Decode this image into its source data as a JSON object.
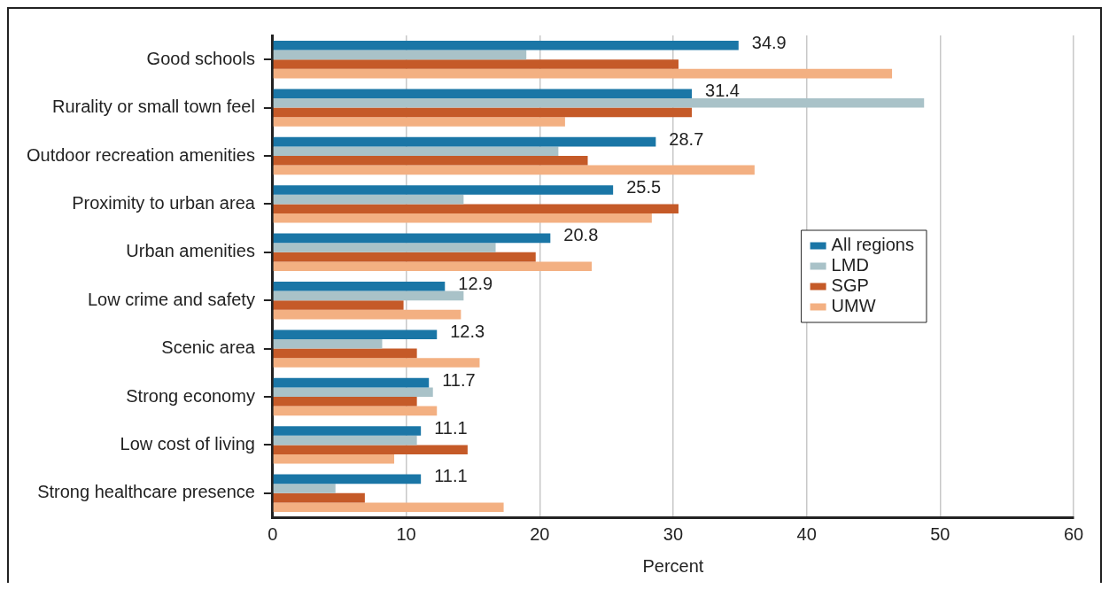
{
  "chart_data": {
    "type": "bar",
    "orientation": "horizontal",
    "xlabel": "Percent",
    "categories": [
      "Good schools",
      "Rurality or small town feel",
      "Outdoor recreation amenities",
      "Proximity to urban area",
      "Urban amenities",
      "Low crime and safety",
      "Scenic area",
      "Strong economy",
      "Low cost of living",
      "Strong healthcare presence"
    ],
    "series": [
      {
        "name": "All regions",
        "color": "#1a76a6",
        "values": [
          34.9,
          31.4,
          28.7,
          25.5,
          20.8,
          12.9,
          12.3,
          11.7,
          11.1,
          11.1
        ],
        "value_labels": [
          "34.9",
          "31.4",
          "28.7",
          "25.5",
          "20.8",
          "12.9",
          "12.3",
          "11.7",
          "11.1",
          "11.1"
        ]
      },
      {
        "name": "LMD",
        "color": "#a9c2c8",
        "values": [
          19.0,
          48.8,
          21.4,
          14.3,
          16.7,
          14.3,
          8.2,
          12.0,
          10.8,
          4.7
        ]
      },
      {
        "name": "SGP",
        "color": "#c55a28",
        "values": [
          30.4,
          31.4,
          23.6,
          30.4,
          19.7,
          9.8,
          10.8,
          10.8,
          14.6,
          6.9
        ]
      },
      {
        "name": "UMW",
        "color": "#f3b082",
        "values": [
          46.4,
          21.9,
          36.1,
          28.4,
          23.9,
          14.1,
          15.5,
          12.3,
          9.1,
          17.3
        ]
      }
    ],
    "xlim": [
      0,
      60
    ],
    "xticks": [
      0,
      10,
      20,
      30,
      40,
      50,
      60
    ],
    "grid": "x",
    "legend": "right"
  }
}
